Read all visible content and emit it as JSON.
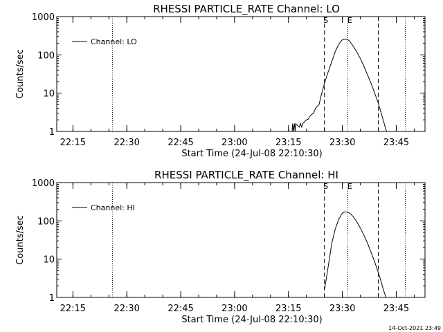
{
  "footer": {
    "timestamp": "14-Oct-2021 23:49"
  },
  "chart_data": [
    {
      "type": "line",
      "title": "RHESSI PARTICLE_RATE Channel: LO",
      "xlabel": "Start Time (24-Jul-08 22:10:30)",
      "ylabel": "Counts/sec",
      "yscale": "log",
      "xlim": [
        "22:10:30",
        "23:53:00"
      ],
      "ylim": [
        1,
        1000
      ],
      "xticks": [
        "22:15",
        "22:30",
        "22:45",
        "23:00",
        "23:15",
        "23:30",
        "23:45"
      ],
      "yticks": [
        "1",
        "10",
        "100",
        "1000"
      ],
      "legend": {
        "placement": "top-left",
        "entries": [
          "Channel: LO"
        ]
      },
      "series": [
        {
          "name": "Channel: LO",
          "x": [
            "23:16:00",
            "23:16:10",
            "23:16:20",
            "23:16:40",
            "23:16:50",
            "23:17:00",
            "23:18:00",
            "23:18:20",
            "23:18:40",
            "23:19:00",
            "23:20:00",
            "23:20:30",
            "23:21:00",
            "23:21:30",
            "23:22:00",
            "23:22:30",
            "23:23:00",
            "23:23:30",
            "23:24:00",
            "23:24:30",
            "23:25:00",
            "23:26:00",
            "23:27:00",
            "23:28:00",
            "23:29:00",
            "23:30:00",
            "23:30:30",
            "23:31:00",
            "23:31:30",
            "23:32:00",
            "23:33:00",
            "23:34:00",
            "23:35:00",
            "23:36:00",
            "23:37:00",
            "23:38:00",
            "23:39:00",
            "23:40:00",
            "23:40:30",
            "23:41:00",
            "23:41:30",
            "23:42:00",
            "23:42:15",
            "23:42:20"
          ],
          "values": [
            1,
            1.6,
            1,
            1.6,
            1,
            1.6,
            1.3,
            1.6,
            1.3,
            1.6,
            2,
            2.1,
            2.5,
            2.8,
            3,
            4,
            4.5,
            5,
            8,
            12,
            18,
            35,
            65,
            120,
            190,
            250,
            255,
            258,
            250,
            230,
            170,
            120,
            80,
            50,
            30,
            18,
            10,
            5.5,
            3.8,
            2.6,
            1.8,
            1.2,
            1.05,
            1
          ]
        }
      ],
      "annotations": [
        {
          "label": "",
          "x": "22:26:00",
          "style": "dotted"
        },
        {
          "label": "S",
          "x": "23:25:00",
          "style": "dashed"
        },
        {
          "label": "E",
          "x": "23:31:30",
          "style": "dotted"
        },
        {
          "label": "",
          "x": "23:40:00",
          "style": "dashed"
        },
        {
          "label": "",
          "x": "23:47:30",
          "style": "dotted"
        }
      ]
    },
    {
      "type": "line",
      "title": "RHESSI PARTICLE_RATE Channel: HI",
      "xlabel": "Start Time (24-Jul-08 22:10:30)",
      "ylabel": "Counts/sec",
      "yscale": "log",
      "xlim": [
        "22:10:30",
        "23:53:00"
      ],
      "ylim": [
        1,
        1000
      ],
      "xticks": [
        "22:15",
        "22:30",
        "22:45",
        "23:00",
        "23:15",
        "23:30",
        "23:45"
      ],
      "yticks": [
        "1",
        "10",
        "100",
        "1000"
      ],
      "legend": {
        "placement": "top-left",
        "entries": [
          "Channel: HI"
        ]
      },
      "series": [
        {
          "name": "Channel: HI",
          "x": [
            "23:25:00",
            "23:25:30",
            "23:26:00",
            "23:26:30",
            "23:27:00",
            "23:28:00",
            "23:29:00",
            "23:30:00",
            "23:30:30",
            "23:31:00",
            "23:31:30",
            "23:32:00",
            "23:33:00",
            "23:34:00",
            "23:35:00",
            "23:36:00",
            "23:37:00",
            "23:38:00",
            "23:39:00",
            "23:40:00",
            "23:40:30",
            "23:41:00",
            "23:41:30",
            "23:42:00",
            "23:42:10"
          ],
          "values": [
            1.6,
            3,
            6,
            12,
            25,
            60,
            110,
            160,
            170,
            172,
            168,
            160,
            130,
            95,
            65,
            42,
            26,
            15,
            8.5,
            4.5,
            3.2,
            2.2,
            1.5,
            1.1,
            1
          ]
        }
      ],
      "annotations": [
        {
          "label": "",
          "x": "22:26:00",
          "style": "dotted"
        },
        {
          "label": "S",
          "x": "23:25:00",
          "style": "dashed"
        },
        {
          "label": "E",
          "x": "23:31:30",
          "style": "dotted"
        },
        {
          "label": "",
          "x": "23:40:00",
          "style": "dashed"
        },
        {
          "label": "",
          "x": "23:47:30",
          "style": "dotted"
        }
      ]
    }
  ]
}
